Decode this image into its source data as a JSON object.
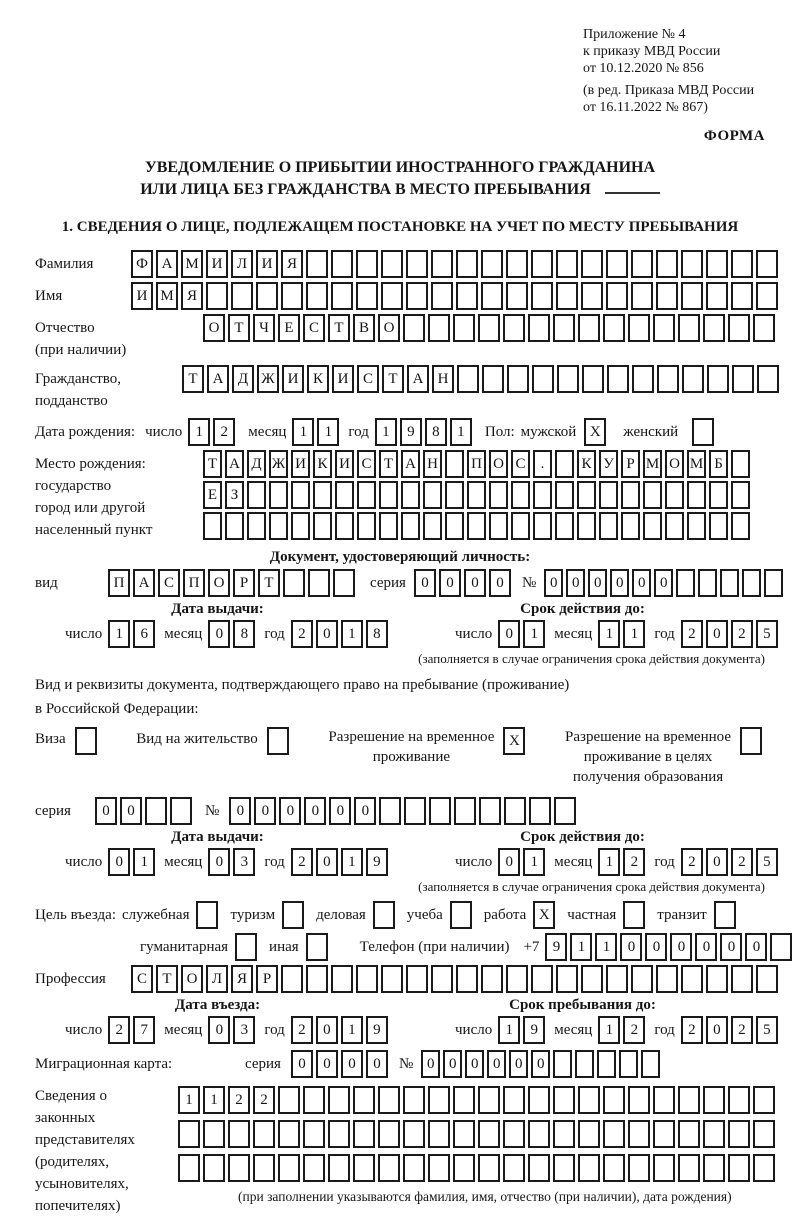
{
  "header": {
    "note1": "Приложение № 4",
    "note2": "к приказу МВД России",
    "note3": "от 10.12.2020 № 856",
    "note4": "(в ред. Приказа МВД России",
    "note5": "от 16.11.2022 № 867)",
    "forma": "ФОРМА"
  },
  "title": {
    "line1": "УВЕДОМЛЕНИЕ О ПРИБЫТИИ ИНОСТРАННОГО ГРАЖДАНИНА",
    "line2": "ИЛИ ЛИЦА БЕЗ ГРАЖДАНСТВА В МЕСТО ПРЕБЫВАНИЯ"
  },
  "section1": {
    "title": "1. СВЕДЕНИЯ О ЛИЦЕ, ПОДЛЕЖАЩЕМ ПОСТАНОВКЕ НА УЧЕТ ПО МЕСТУ ПРЕБЫВАНИЯ"
  },
  "fields": {
    "surname": {
      "label": "Фамилия",
      "boxes": {
        "text": "ФАМИЛИЯ",
        "len": 26
      }
    },
    "name": {
      "label": "Имя",
      "boxes": {
        "text": "ИМЯ",
        "len": 26
      }
    },
    "patronymic": {
      "label1": "Отчество",
      "label2": "(при наличии)",
      "boxes": {
        "text": "ОТЧЕСТВО",
        "len": 23
      }
    },
    "citizenship": {
      "label1": "Гражданство,",
      "label2": "подданство",
      "boxes": {
        "text": "ТАДЖИКИСТАН",
        "len": 24
      }
    },
    "birth_date": {
      "label": "Дата рождения:",
      "day_label": "число",
      "day": {
        "text": "12",
        "len": 2
      },
      "month_label": "месяц",
      "month": {
        "text": "11",
        "len": 2
      },
      "year_label": "год",
      "year": {
        "text": "1981",
        "len": 4
      },
      "sex_label": "Пол:",
      "male_label": "мужской",
      "male": {
        "text": "X",
        "len": 1
      },
      "female_label": "женский",
      "female": {
        "text": "",
        "len": 1
      }
    },
    "birth_place": {
      "label1": "Место рождения:",
      "label2": "государство",
      "label3": "город или другой",
      "label4": "населенный пункт",
      "row1": {
        "text": "ТАДЖИКИСТАН ПОС. КУРМОМБ",
        "len": 25
      },
      "row2": {
        "text": "ЕЗ",
        "len": 25
      },
      "row3": {
        "text": "",
        "len": 25
      }
    },
    "identity_doc": {
      "header": "Документ, удостоверяющий личность:",
      "type_label": "вид",
      "type": {
        "text": "ПАСПОРТ",
        "len": 10
      },
      "series_label": "серия",
      "series": {
        "text": "0000",
        "len": 4
      },
      "number_label": "№",
      "number": {
        "text": "000000",
        "len": 11
      }
    },
    "identity_issue": {
      "header": "Дата выдачи:",
      "day_label": "число",
      "day": {
        "text": "16",
        "len": 2
      },
      "month_label": "месяц",
      "month": {
        "text": "08",
        "len": 2
      },
      "year_label": "год",
      "year": {
        "text": "2018",
        "len": 4
      }
    },
    "identity_valid": {
      "header": "Срок действия до:",
      "day_label": "число",
      "day": {
        "text": "01",
        "len": 2
      },
      "month_label": "месяц",
      "month": {
        "text": "11",
        "len": 2
      },
      "year_label": "год",
      "year": {
        "text": "2025",
        "len": 4
      },
      "note": "(заполняется в случае ограничения срока действия документа)"
    },
    "residence_doc": {
      "intro1": "Вид и реквизиты документа, подтверждающего право на пребывание (проживание)",
      "intro2": "в Российской Федерации:",
      "visa_label": "Виза",
      "visa": {
        "text": "",
        "len": 1
      },
      "vnj_label": "Вид на жительство",
      "vnj": {
        "text": "",
        "len": 1
      },
      "rvp_label1": "Разрешение на временное",
      "rvp_label2": "проживание",
      "rvp": {
        "text": "X",
        "len": 1
      },
      "rvpo_label1": "Разрешение на временное",
      "rvpo_label2": "проживание в целях",
      "rvpo_label3": "получения образования",
      "rvpo": {
        "text": "",
        "len": 1
      }
    },
    "residence_series": {
      "series_label": "серия",
      "series": {
        "text": "00",
        "len": 4
      },
      "number_label": "№",
      "number": {
        "text": "000000",
        "len": 14
      }
    },
    "residence_issue": {
      "header": "Дата выдачи:",
      "day_label": "число",
      "day": {
        "text": "01",
        "len": 2
      },
      "month_label": "месяц",
      "month": {
        "text": "03",
        "len": 2
      },
      "year_label": "год",
      "year": {
        "text": "2019",
        "len": 4
      }
    },
    "residence_valid": {
      "header": "Срок действия до:",
      "day_label": "число",
      "day": {
        "text": "01",
        "len": 2
      },
      "month_label": "месяц",
      "month": {
        "text": "12",
        "len": 2
      },
      "year_label": "год",
      "year": {
        "text": "2025",
        "len": 4
      },
      "note": "(заполняется в случае ограничения срока действия документа)"
    },
    "purpose": {
      "label": "Цель въезда:",
      "row1": [
        {
          "label": "служебная",
          "box": ""
        },
        {
          "label": "туризм",
          "box": ""
        },
        {
          "label": "деловая",
          "box": ""
        },
        {
          "label": "учеба",
          "box": ""
        },
        {
          "label": "работа",
          "box": "X"
        },
        {
          "label": "частная",
          "box": ""
        },
        {
          "label": "транзит",
          "box": ""
        }
      ],
      "row2": [
        {
          "label": "гуманитарная",
          "box": ""
        },
        {
          "label": "иная",
          "box": ""
        }
      ],
      "phone_label": "Телефон (при наличии)",
      "phone_prefix": "+7",
      "phone": {
        "text": "911000000",
        "len": 10
      }
    },
    "profession": {
      "label": "Профессия",
      "boxes": {
        "text": "СТОЛЯР",
        "len": 26
      }
    },
    "entry_date": {
      "header": "Дата въезда:",
      "day_label": "число",
      "day": {
        "text": "27",
        "len": 2
      },
      "month_label": "месяц",
      "month": {
        "text": "03",
        "len": 2
      },
      "year_label": "год",
      "year": {
        "text": "2019",
        "len": 4
      }
    },
    "stay_until": {
      "header": "Срок пребывания до:",
      "day_label": "число",
      "day": {
        "text": "19",
        "len": 2
      },
      "month_label": "месяц",
      "month": {
        "text": "12",
        "len": 2
      },
      "year_label": "год",
      "year": {
        "text": "2025",
        "len": 4
      }
    },
    "migration_card": {
      "label": "Миграционная карта:",
      "series_label": "серия",
      "series": {
        "text": "0000",
        "len": 4
      },
      "number_label": "№",
      "number": {
        "text": "000000",
        "len": 11
      }
    },
    "representatives": {
      "label1": "Сведения о",
      "label2": "законных",
      "label3": "представителях",
      "label4": "(родителях,",
      "label5": "усыновителях,",
      "label6": "попечителях)",
      "row1": {
        "text": "1122",
        "len": 24
      },
      "row2": {
        "text": "",
        "len": 24
      },
      "row3": {
        "text": "",
        "len": 24
      },
      "note": "(при заполнении указываются фамилия, имя, отчество (при наличии), дата рождения)"
    }
  }
}
